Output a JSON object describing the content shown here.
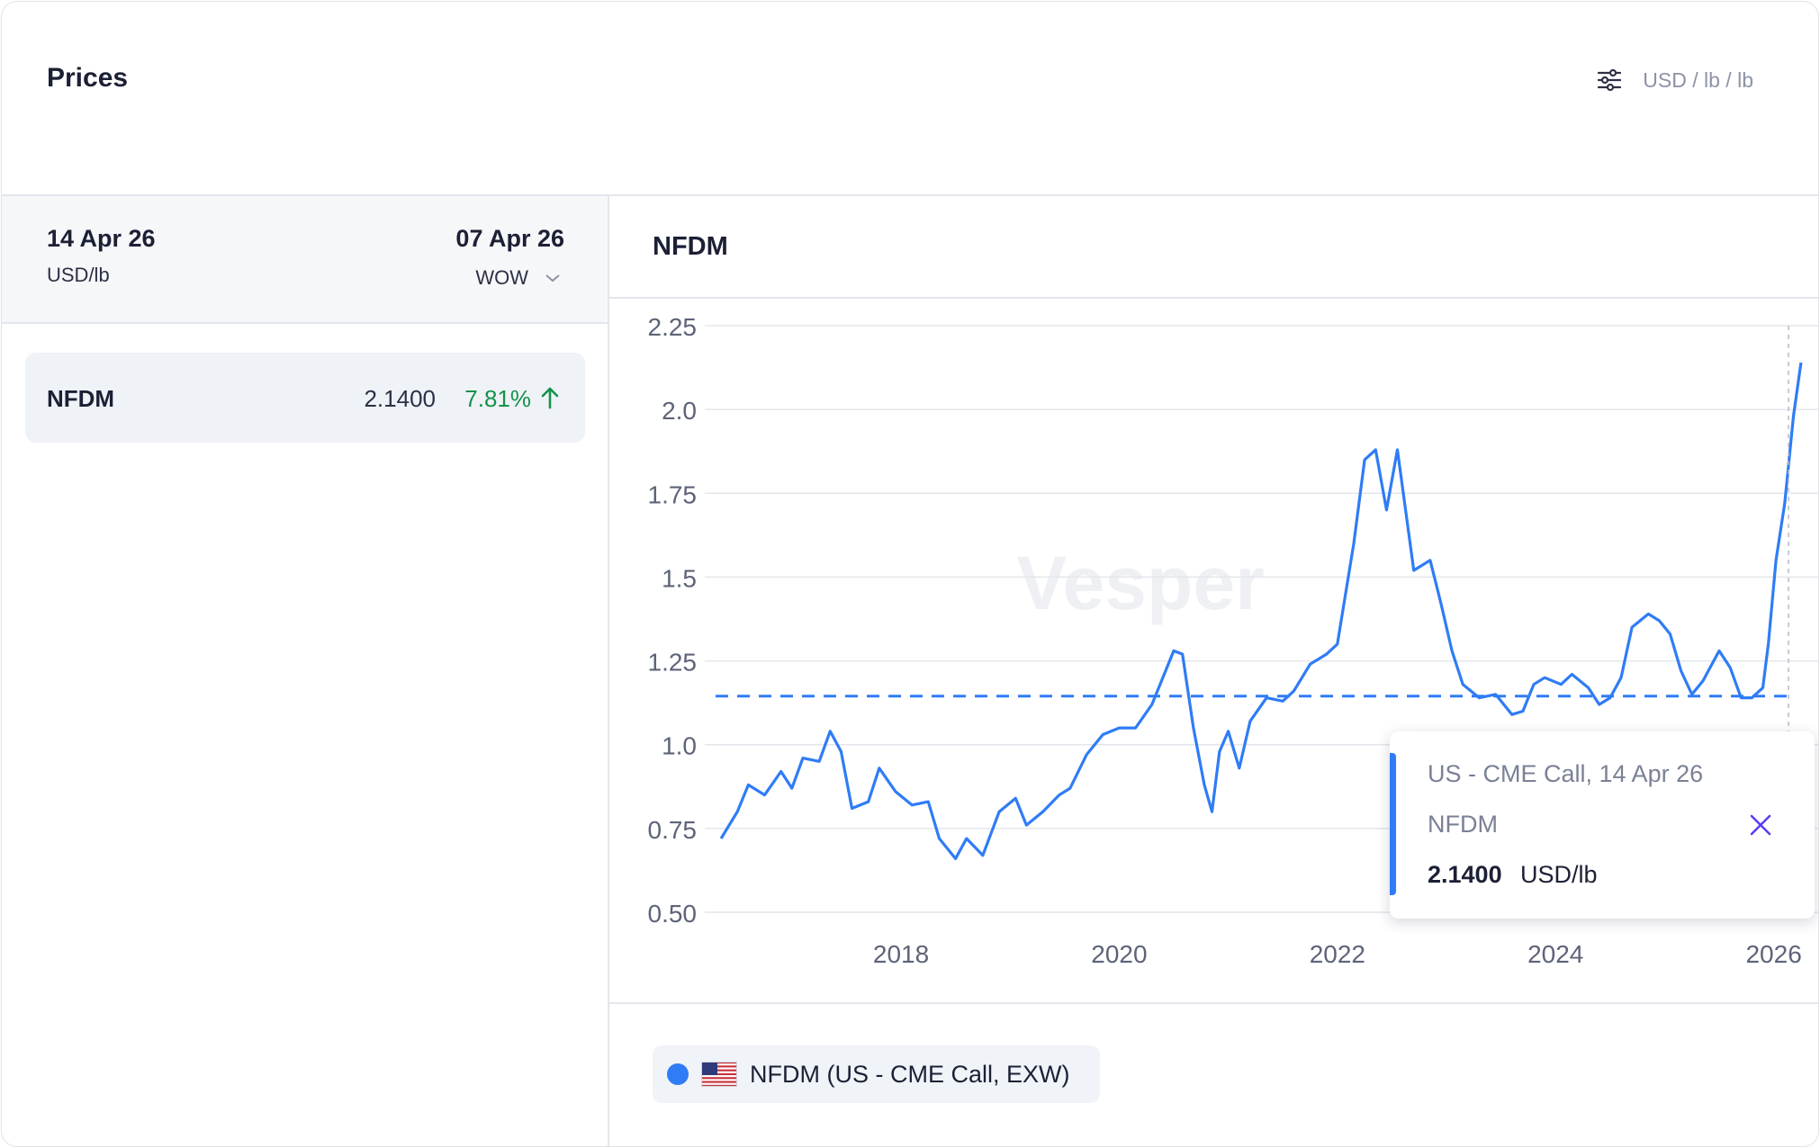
{
  "header": {
    "title": "Prices",
    "unit_selector": "USD / lb / lb",
    "settings_icon": "sliders-icon"
  },
  "left_panel": {
    "current_date": "14 Apr 26",
    "unit": "USD/lb",
    "compare_date": "07 Apr 26",
    "compare_mode": "WOW",
    "rows": [
      {
        "name": "NFDM",
        "value": "2.1400",
        "change": "7.81%",
        "direction": "up"
      }
    ]
  },
  "chart_panel": {
    "title": "NFDM",
    "watermark": "Vesper",
    "legend": {
      "label": "NFDM (US - CME Call, EXW)",
      "flag": "us-flag-icon"
    },
    "tooltip": {
      "title": "US - CME Call, 14 Apr 26",
      "series": "NFDM",
      "value": "2.1400",
      "unit": "USD/lb"
    }
  },
  "colors": {
    "series": "#2f7cf6",
    "up": "#15924a",
    "tooltip_close": "#5b3df5"
  },
  "chart_data": {
    "type": "line",
    "y_tick_labels": [
      "0.50",
      "0.75",
      "1.0",
      "1.25",
      "1.5",
      "1.75",
      "2.0",
      "2.25"
    ],
    "x_tick_labels": [
      "2018",
      "2020",
      "2022",
      "2024",
      "2026"
    ],
    "ylim": [
      0.5,
      2.25
    ],
    "xlim": [
      2016.3,
      2026.3
    ],
    "reference_line": 1.145,
    "grid": true,
    "series": [
      {
        "points": [
          [
            2016.35,
            0.72
          ],
          [
            2016.5,
            0.8
          ],
          [
            2016.6,
            0.88
          ],
          [
            2016.75,
            0.85
          ],
          [
            2016.9,
            0.92
          ],
          [
            2017.0,
            0.87
          ],
          [
            2017.1,
            0.96
          ],
          [
            2017.25,
            0.95
          ],
          [
            2017.35,
            1.04
          ],
          [
            2017.45,
            0.98
          ],
          [
            2017.55,
            0.81
          ],
          [
            2017.7,
            0.83
          ],
          [
            2017.8,
            0.93
          ],
          [
            2017.95,
            0.86
          ],
          [
            2018.1,
            0.82
          ],
          [
            2018.25,
            0.83
          ],
          [
            2018.35,
            0.72
          ],
          [
            2018.5,
            0.66
          ],
          [
            2018.6,
            0.72
          ],
          [
            2018.75,
            0.67
          ],
          [
            2018.9,
            0.8
          ],
          [
            2019.05,
            0.84
          ],
          [
            2019.15,
            0.76
          ],
          [
            2019.3,
            0.8
          ],
          [
            2019.45,
            0.85
          ],
          [
            2019.55,
            0.87
          ],
          [
            2019.7,
            0.97
          ],
          [
            2019.85,
            1.03
          ],
          [
            2020.0,
            1.05
          ],
          [
            2020.15,
            1.05
          ],
          [
            2020.3,
            1.12
          ],
          [
            2020.5,
            1.28
          ],
          [
            2020.58,
            1.27
          ],
          [
            2020.68,
            1.05
          ],
          [
            2020.78,
            0.88
          ],
          [
            2020.85,
            0.8
          ],
          [
            2020.92,
            0.98
          ],
          [
            2021.0,
            1.04
          ],
          [
            2021.1,
            0.93
          ],
          [
            2021.2,
            1.07
          ],
          [
            2021.35,
            1.14
          ],
          [
            2021.5,
            1.13
          ],
          [
            2021.6,
            1.16
          ],
          [
            2021.75,
            1.24
          ],
          [
            2021.9,
            1.27
          ],
          [
            2022.0,
            1.3
          ],
          [
            2022.15,
            1.6
          ],
          [
            2022.25,
            1.85
          ],
          [
            2022.35,
            1.88
          ],
          [
            2022.45,
            1.7
          ],
          [
            2022.55,
            1.88
          ],
          [
            2022.7,
            1.52
          ],
          [
            2022.85,
            1.55
          ],
          [
            2022.95,
            1.42
          ],
          [
            2023.05,
            1.28
          ],
          [
            2023.15,
            1.18
          ],
          [
            2023.3,
            1.14
          ],
          [
            2023.45,
            1.15
          ],
          [
            2023.6,
            1.09
          ],
          [
            2023.7,
            1.1
          ],
          [
            2023.8,
            1.18
          ],
          [
            2023.9,
            1.2
          ],
          [
            2024.05,
            1.18
          ],
          [
            2024.15,
            1.21
          ],
          [
            2024.3,
            1.17
          ],
          [
            2024.4,
            1.12
          ],
          [
            2024.5,
            1.14
          ],
          [
            2024.6,
            1.2
          ],
          [
            2024.7,
            1.35
          ],
          [
            2024.85,
            1.39
          ],
          [
            2024.95,
            1.37
          ],
          [
            2025.05,
            1.33
          ],
          [
            2025.15,
            1.22
          ],
          [
            2025.25,
            1.15
          ],
          [
            2025.35,
            1.19
          ],
          [
            2025.5,
            1.28
          ],
          [
            2025.6,
            1.23
          ],
          [
            2025.7,
            1.14
          ],
          [
            2025.8,
            1.14
          ],
          [
            2025.9,
            1.17
          ],
          [
            2025.95,
            1.3
          ],
          [
            2026.02,
            1.55
          ],
          [
            2026.1,
            1.72
          ],
          [
            2026.18,
            1.98
          ],
          [
            2026.25,
            2.14
          ]
        ]
      }
    ]
  }
}
